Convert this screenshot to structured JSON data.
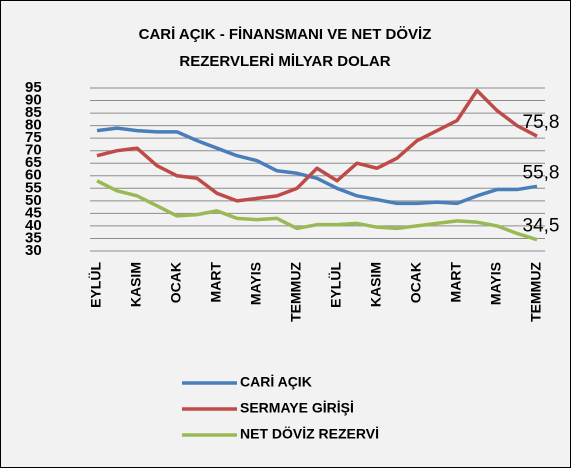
{
  "chart_data": {
    "type": "line",
    "title": [
      "CARİ AÇIK - FİNANSMANI VE NET DÖVİZ",
      "REZERVLERİ  MİLYAR DOLAR"
    ],
    "categories": [
      "EYLÜL",
      null,
      "KASIM",
      null,
      "OCAK",
      null,
      "MART",
      null,
      "MAYIS",
      null,
      "TEMMUZ",
      null,
      "EYLÜL",
      null,
      "KASIM",
      null,
      "OCAK",
      null,
      "MART",
      null,
      "MAYIS",
      null,
      "TEMMUZ"
    ],
    "series": [
      {
        "name": "CARİ AÇIK",
        "color": "#4a7ebb",
        "values": [
          78,
          79,
          78,
          77.5,
          77.5,
          74,
          71,
          68,
          66,
          62,
          61,
          59,
          55,
          52,
          50.5,
          49,
          49,
          49.5,
          49,
          52,
          54.5,
          54.5,
          55.8
        ],
        "value_labels": [
          null,
          null,
          null,
          null,
          null,
          null,
          null,
          null,
          null,
          null,
          null,
          null,
          null,
          null,
          null,
          null,
          null,
          null,
          null,
          null,
          null,
          null,
          "55,8"
        ]
      },
      {
        "name": "SERMAYE GİRİŞİ",
        "color": "#be4b48",
        "values": [
          68,
          70,
          71,
          64,
          60,
          59,
          53,
          50,
          51,
          52,
          55,
          63,
          58,
          65,
          63,
          67,
          74,
          78,
          82,
          94,
          86,
          80,
          75.8
        ],
        "value_labels": [
          null,
          null,
          null,
          null,
          null,
          null,
          null,
          null,
          null,
          null,
          null,
          null,
          null,
          null,
          null,
          null,
          null,
          null,
          null,
          null,
          null,
          null,
          "75,8"
        ]
      },
      {
        "name": "NET DÖVİZ REZERVİ",
        "color": "#98b954",
        "values": [
          58,
          54,
          52,
          48,
          44,
          44.5,
          46,
          43,
          42.5,
          43,
          39,
          40.5,
          40.5,
          41,
          39.5,
          39,
          40,
          41,
          42,
          41.5,
          40,
          37,
          34.5
        ],
        "value_labels": [
          null,
          null,
          null,
          null,
          null,
          null,
          null,
          null,
          null,
          null,
          null,
          null,
          null,
          null,
          null,
          null,
          null,
          null,
          null,
          null,
          null,
          null,
          "34,5"
        ]
      }
    ],
    "ylim": [
      30,
      95
    ],
    "yticks": [
      30,
      35,
      40,
      45,
      50,
      55,
      60,
      65,
      70,
      75,
      80,
      85,
      90,
      95
    ],
    "grid": true
  }
}
